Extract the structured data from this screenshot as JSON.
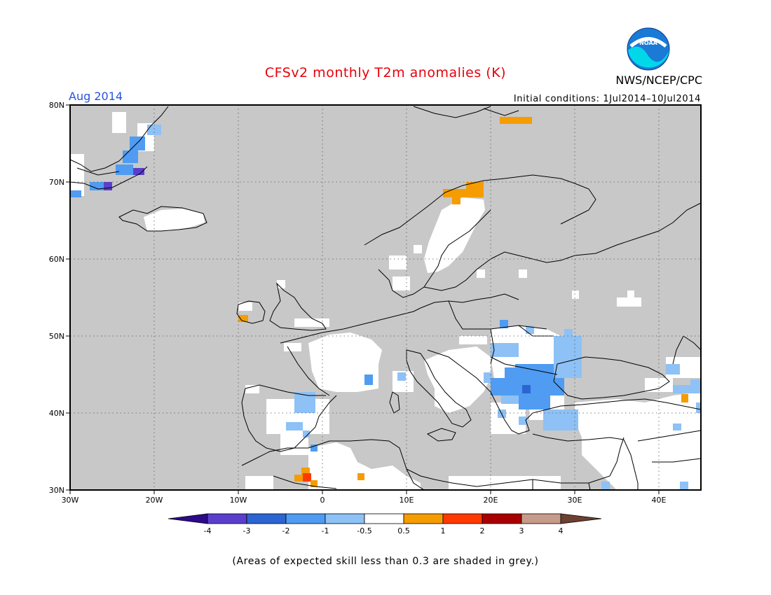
{
  "header": {
    "title": "CFSv2 monthly T2m anomalies (K)",
    "month": "Aug 2014",
    "org": "NWS/NCEP/CPC",
    "initial_conditions": "Initial conditions: 1Jul2014–10Jul2014",
    "logo_text": "NOAA"
  },
  "footer": {
    "note": "(Areas of expected skill less than 0.3 are shaded in grey.)"
  },
  "colors": {
    "grey_low_skill": "#c8c8c8",
    "neutral": "#ffffff",
    "coast": "#000000"
  },
  "map": {
    "lon_range": [
      -30,
      45
    ],
    "lat_range": [
      30,
      80
    ],
    "lat_ticks": [
      {
        "value": 80,
        "label": "80N"
      },
      {
        "value": 70,
        "label": "70N"
      },
      {
        "value": 60,
        "label": "60N"
      },
      {
        "value": 50,
        "label": "50N"
      },
      {
        "value": 40,
        "label": "40N"
      },
      {
        "value": 30,
        "label": "30N"
      }
    ],
    "lon_ticks": [
      {
        "value": -30,
        "label": "30W"
      },
      {
        "value": -20,
        "label": "20W"
      },
      {
        "value": -10,
        "label": "10W"
      },
      {
        "value": 0,
        "label": "0"
      },
      {
        "value": 10,
        "label": "10E"
      },
      {
        "value": 20,
        "label": "20E"
      },
      {
        "value": 30,
        "label": "30E"
      },
      {
        "value": 40,
        "label": "40E"
      }
    ],
    "anomaly_regions": [
      {
        "name": "greenland-east-coast",
        "color": "#4f9cf2",
        "lon": [
          -24,
          -21
        ],
        "lat": [
          71,
          77
        ]
      },
      {
        "name": "greenland-southeast",
        "color": "#4a3fd2",
        "lon": [
          -27,
          -24
        ],
        "lat": [
          69,
          70
        ]
      },
      {
        "name": "greenland-south-tip",
        "color": "#4f9cf2",
        "lon": [
          -30,
          -28
        ],
        "lat": [
          68.5,
          69.5
        ]
      },
      {
        "name": "svalbard-east",
        "color": "#f59c00",
        "lon": [
          15,
          19
        ],
        "lat": [
          77.5,
          78
        ]
      },
      {
        "name": "northern-norway",
        "color": "#f59c00",
        "lon": [
          15,
          18
        ],
        "lat": [
          68,
          69.5
        ]
      },
      {
        "name": "ireland-southwest",
        "color": "#f59c00",
        "lon": [
          -10,
          -9
        ],
        "lat": [
          52,
          52.5
        ]
      },
      {
        "name": "iberia-east",
        "color": "#8ec1f5",
        "lon": [
          -3,
          0
        ],
        "lat": [
          39.5,
          42
        ]
      },
      {
        "name": "iberia-south",
        "color": "#8ec1f5",
        "lon": [
          -4,
          -2
        ],
        "lat": [
          38,
          39
        ]
      },
      {
        "name": "morocco",
        "color": "#ff3a00",
        "lon": [
          -2,
          0
        ],
        "lat": [
          31,
          32
        ]
      },
      {
        "name": "algeria",
        "color": "#f59c00",
        "lon": [
          4,
          5
        ],
        "lat": [
          31,
          31.5
        ]
      },
      {
        "name": "hungary-romania",
        "color": "#4f9cf2",
        "lon": [
          20,
          28
        ],
        "lat": [
          41,
          46
        ]
      },
      {
        "name": "black-sea-west",
        "color": "#8ec1f5",
        "lon": [
          27,
          31
        ],
        "lat": [
          44,
          48
        ]
      },
      {
        "name": "turkey-west",
        "color": "#8ec1f5",
        "lon": [
          27,
          30
        ],
        "lat": [
          37,
          40
        ]
      },
      {
        "name": "caucasus",
        "color": "#8ec1f5",
        "lon": [
          40,
          44
        ],
        "lat": [
          41,
          44
        ]
      },
      {
        "name": "caucasus-east",
        "color": "#f59c00",
        "lon": [
          43,
          44
        ],
        "lat": [
          41,
          42
        ]
      }
    ]
  },
  "legend": {
    "items": [
      {
        "color": "#2d0a8c",
        "shape": "left-arrow"
      },
      {
        "color": "#5a3fcc"
      },
      {
        "color": "#2c65d2"
      },
      {
        "color": "#4f9cf2"
      },
      {
        "color": "#8ec1f5"
      },
      {
        "color": "#ffffff"
      },
      {
        "color": "#f59c00"
      },
      {
        "color": "#ff3a00"
      },
      {
        "color": "#a80000"
      },
      {
        "color": "#c79b8a"
      },
      {
        "color": "#6e4030",
        "shape": "right-arrow"
      }
    ],
    "labels": [
      "-4",
      "-3",
      "-2",
      "-1",
      "-0.5",
      "0.5",
      "1",
      "2",
      "3",
      "4"
    ]
  }
}
